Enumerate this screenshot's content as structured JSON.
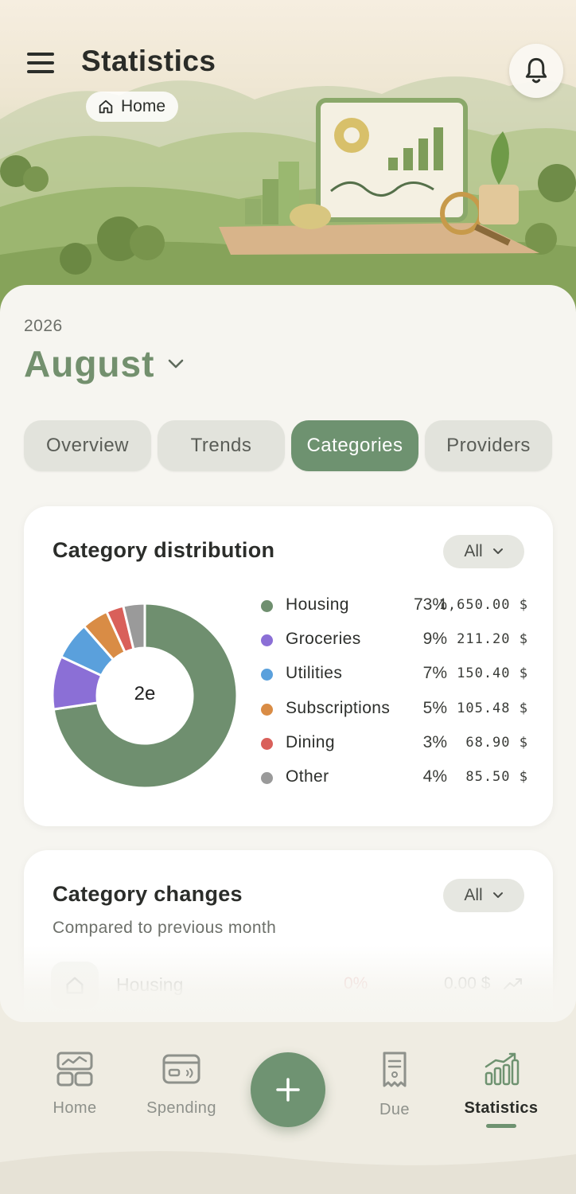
{
  "header": {
    "title": "Statistics",
    "breadcrumb": "Home"
  },
  "period": {
    "year": "2026",
    "month": "August"
  },
  "tabs": [
    {
      "label": "Overview",
      "active": false
    },
    {
      "label": "Trends",
      "active": false
    },
    {
      "label": "Categories",
      "active": true
    },
    {
      "label": "Providers",
      "active": false
    }
  ],
  "distribution": {
    "title": "Category distribution",
    "filter_label": "All",
    "center_label": "2e",
    "items": [
      {
        "name": "Housing",
        "percent": "73%",
        "amount": "1,650.00 $",
        "color": "#6f8f6f"
      },
      {
        "name": "Groceries",
        "percent": "9%",
        "amount": "211.20 $",
        "color": "#8b6fd6"
      },
      {
        "name": "Utilities",
        "percent": "7%",
        "amount": "150.40 $",
        "color": "#5aa0dc"
      },
      {
        "name": "Subscriptions",
        "percent": "5%",
        "amount": "105.48 $",
        "color": "#d98c45"
      },
      {
        "name": "Dining",
        "percent": "3%",
        "amount": "68.90 $",
        "color": "#d9605a"
      },
      {
        "name": "Other",
        "percent": "4%",
        "amount": "85.50 $",
        "color": "#9a9a9a"
      }
    ]
  },
  "chart_data": {
    "type": "pie",
    "categories": [
      "Housing",
      "Groceries",
      "Utilities",
      "Subscriptions",
      "Dining",
      "Other"
    ],
    "values": [
      1650.0,
      211.2,
      150.4,
      105.48,
      68.9,
      85.5
    ],
    "percent": [
      73,
      9,
      7,
      5,
      3,
      4
    ],
    "colors": [
      "#6f8f6f",
      "#8b6fd6",
      "#5aa0dc",
      "#d98c45",
      "#d9605a",
      "#9a9a9a"
    ],
    "title": "Category distribution",
    "legend": "right"
  },
  "changes": {
    "title": "Category changes",
    "subtitle": "Compared to previous month",
    "filter_label": "All",
    "rows": [
      {
        "name": "Housing",
        "percent": "0%",
        "amount": "0.00 $"
      }
    ]
  },
  "nav": {
    "home": "Home",
    "spending": "Spending",
    "due": "Due",
    "statistics": "Statistics",
    "active": "statistics"
  }
}
